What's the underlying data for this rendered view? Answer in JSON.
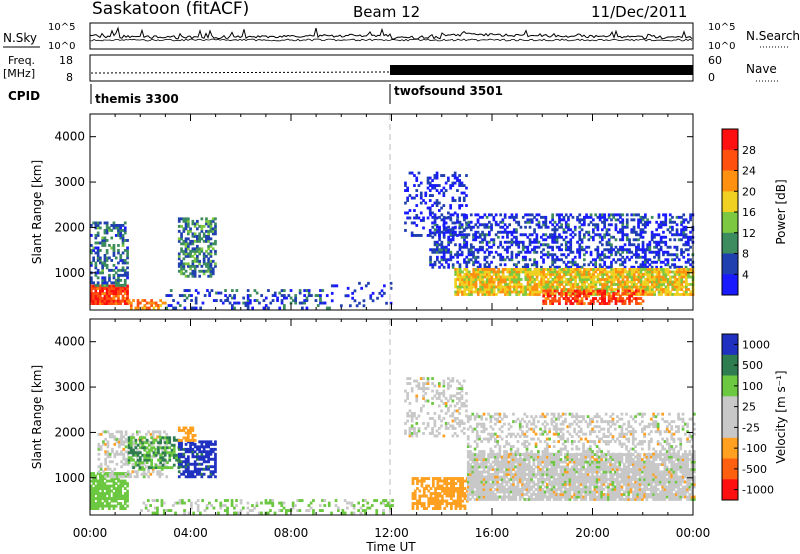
{
  "header": {
    "station": "Saskatoon (fitACF)",
    "beam": "Beam 12",
    "date": "11/Dec/2011"
  },
  "noise_panel": {
    "left_label": "N.Sky",
    "right_label": "N.Search",
    "left_ticks": [
      "10^5",
      "10^0"
    ],
    "right_ticks": [
      "10^5",
      "10^0"
    ]
  },
  "freq_panel": {
    "left_label_line1": "Freq.",
    "left_label_line2": "[MHz]",
    "right_label": "Nave",
    "left_ticks": [
      "18",
      "8"
    ],
    "right_ticks": [
      "60",
      "0"
    ]
  },
  "cpid": {
    "label": "CPID",
    "segments": [
      {
        "name": "themis 3300",
        "start_hour": 0
      },
      {
        "name": "twofsound 3501",
        "start_hour": 12
      }
    ]
  },
  "axes": {
    "xlabel": "Time UT",
    "x_tick_labels": [
      "00:00",
      "04:00",
      "08:00",
      "12:00",
      "16:00",
      "20:00",
      "00:00"
    ],
    "ylabel": "Slant Range [km]",
    "y_tick_labels": [
      "1000",
      "2000",
      "3000",
      "4000"
    ]
  },
  "colorbars": {
    "power": {
      "label": "Power [dB]",
      "ticks": [
        "4",
        "8",
        "12",
        "16",
        "20",
        "24",
        "28"
      ],
      "colors": [
        "#1a1aff",
        "#2040b0",
        "#3c8c60",
        "#7cc840",
        "#f0d020",
        "#ff9010",
        "#ff5010",
        "#ff1010"
      ]
    },
    "velocity": {
      "label": "Velocity [m s⁻¹]",
      "ticks": [
        "1000",
        "500",
        "100",
        "25",
        "-25",
        "-100",
        "-500",
        "-1000"
      ],
      "colors": [
        "#2030c0",
        "#2e7c50",
        "#6cc840",
        "#c8c8c8",
        "#c8c8c8",
        "#ffa020",
        "#ff6010",
        "#ff1010"
      ]
    }
  },
  "chart_data": [
    {
      "type": "heatmap",
      "title": "",
      "quantity": "Power",
      "units": "dB",
      "x_range_hours": [
        0,
        24
      ],
      "y_range_km": [
        180,
        4500
      ],
      "color_range": [
        2,
        30
      ],
      "regions": [
        {
          "t0": 0.0,
          "t1": 1.5,
          "r0": 300,
          "r1": 700,
          "value": 26,
          "density": 0.9
        },
        {
          "t0": 0.0,
          "t1": 1.5,
          "r0": 700,
          "r1": 2100,
          "value": 9,
          "density": 0.45
        },
        {
          "t0": 1.5,
          "t1": 3.0,
          "r0": 200,
          "r1": 420,
          "value": 22,
          "density": 0.55
        },
        {
          "t0": 3.5,
          "t1": 5.0,
          "r0": 900,
          "r1": 2200,
          "value": 10,
          "density": 0.55
        },
        {
          "t0": 3.0,
          "t1": 9.5,
          "r0": 200,
          "r1": 600,
          "value": 7,
          "density": 0.25
        },
        {
          "t0": 9.5,
          "t1": 12.0,
          "r0": 250,
          "r1": 800,
          "value": 5,
          "density": 0.15
        },
        {
          "t0": 12.5,
          "t1": 15.0,
          "r0": 1800,
          "r1": 3200,
          "value": 5,
          "density": 0.25
        },
        {
          "t0": 13.5,
          "t1": 24.0,
          "r0": 1100,
          "r1": 2300,
          "value": 6,
          "density": 0.4
        },
        {
          "t0": 14.5,
          "t1": 24.0,
          "r0": 500,
          "r1": 1100,
          "value": 18,
          "density": 0.85
        },
        {
          "t0": 18.0,
          "t1": 22.0,
          "r0": 300,
          "r1": 600,
          "value": 26,
          "density": 0.6
        }
      ]
    },
    {
      "type": "heatmap",
      "title": "",
      "quantity": "Velocity",
      "units": "m/s",
      "x_range_hours": [
        0,
        24
      ],
      "y_range_km": [
        180,
        4500
      ],
      "regions": [
        {
          "t0": 0.0,
          "t1": 1.5,
          "r0": 300,
          "r1": 1100,
          "value": 150,
          "density": 0.75
        },
        {
          "t0": 0.3,
          "t1": 3.0,
          "r0": 1000,
          "r1": 2000,
          "value": 0,
          "density": 0.4
        },
        {
          "t0": 1.5,
          "t1": 3.5,
          "r0": 1200,
          "r1": 1900,
          "value": 300,
          "density": 0.55
        },
        {
          "t0": 3.5,
          "t1": 5.0,
          "r0": 1000,
          "r1": 1800,
          "value": 800,
          "density": 0.65
        },
        {
          "t0": 3.5,
          "t1": 4.2,
          "r0": 1800,
          "r1": 2100,
          "value": -150,
          "density": 0.6
        },
        {
          "t0": 2.0,
          "t1": 12.0,
          "r0": 200,
          "r1": 500,
          "value": 80,
          "density": 0.3
        },
        {
          "t0": 12.5,
          "t1": 15.0,
          "r0": 1900,
          "r1": 3200,
          "value": 0,
          "density": 0.3
        },
        {
          "t0": 12.8,
          "t1": 15.0,
          "r0": 300,
          "r1": 1000,
          "value": -150,
          "density": 0.65
        },
        {
          "t0": 15.0,
          "t1": 24.0,
          "r0": 500,
          "r1": 1500,
          "value": 0,
          "density": 0.85
        },
        {
          "t0": 15.0,
          "t1": 24.0,
          "r0": 1500,
          "r1": 2400,
          "value": 0,
          "density": 0.35
        }
      ]
    }
  ]
}
